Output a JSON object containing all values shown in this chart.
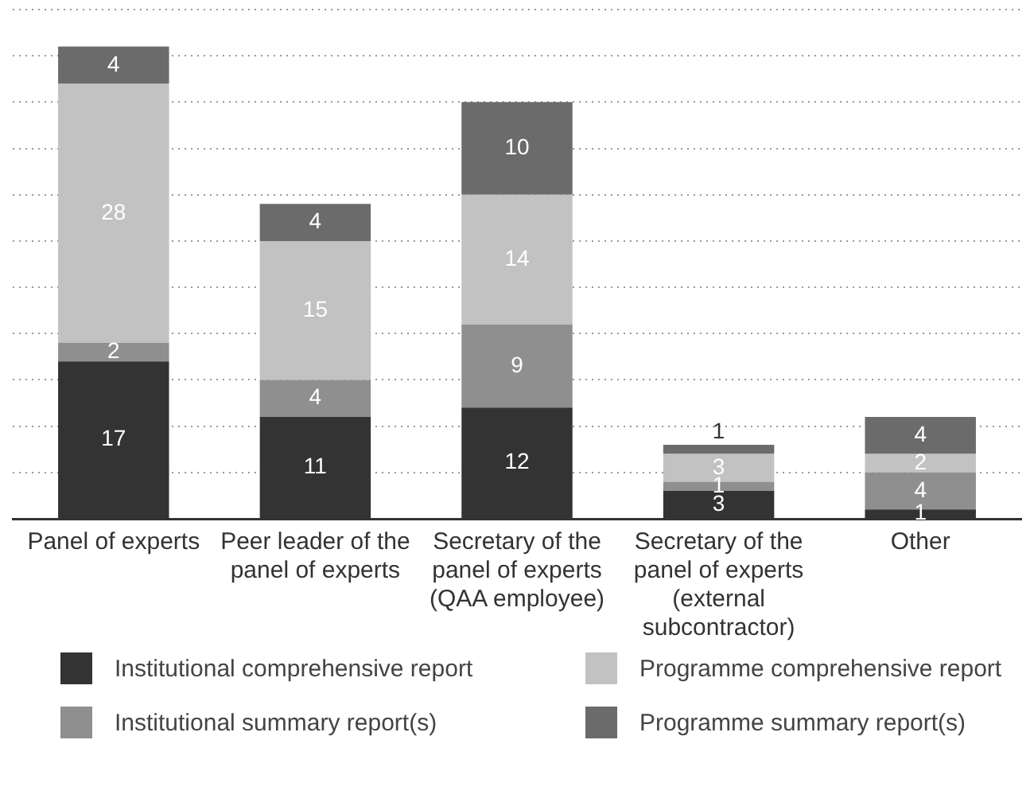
{
  "chart_data": {
    "type": "bar",
    "stacked": true,
    "data_labels": true,
    "grid": "y",
    "tick_labels": "x",
    "legend": "bottom",
    "categories": [
      "Panel of experts",
      "Peer leader of the panel of experts",
      "Secretary of the panel of experts (QAA employee)",
      "Secretary of the panel of experts (external subcontractor)",
      "Other"
    ],
    "ylim": [
      0,
      55
    ],
    "yticks": [
      0,
      5,
      10,
      15,
      20,
      25,
      30,
      35,
      40,
      45,
      50,
      55
    ],
    "series": [
      {
        "name": "Institutional comprehensive report",
        "color": "#333333",
        "values": [
          17,
          11,
          12,
          3,
          1
        ]
      },
      {
        "name": "Institutional summary report(s)",
        "color": "#8f8f8f",
        "values": [
          2,
          4,
          9,
          1,
          4
        ]
      },
      {
        "name": "Programme comprehensive report",
        "color": "#c2c2c2",
        "values": [
          28,
          15,
          14,
          3,
          2
        ]
      },
      {
        "name": "Programme summary report(s)",
        "color": "#6b6b6b",
        "values": [
          4,
          4,
          10,
          1,
          4
        ]
      }
    ]
  }
}
